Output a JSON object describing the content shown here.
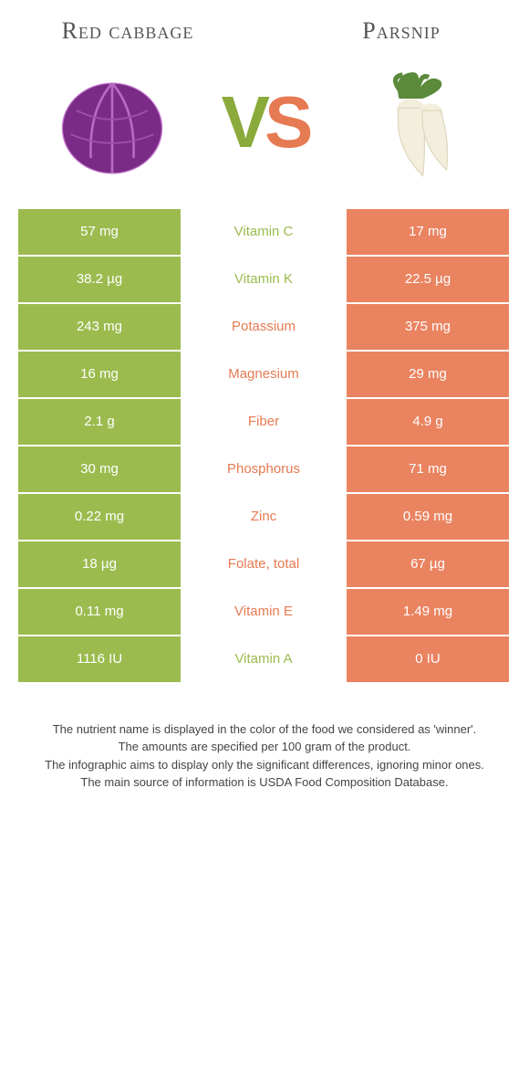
{
  "titles": {
    "left": "Red cabbage",
    "right": "Parsnip"
  },
  "vs": {
    "v": "V",
    "s": "S"
  },
  "colors": {
    "left_bg": "#9bbb4e",
    "right_bg": "#ea8360",
    "left_text": "#9bbb4e",
    "right_text": "#e67a52"
  },
  "rows": [
    {
      "left": "57 mg",
      "label": "Vitamin C",
      "right": "17 mg",
      "winner": "left"
    },
    {
      "left": "38.2 µg",
      "label": "Vitamin K",
      "right": "22.5 µg",
      "winner": "left"
    },
    {
      "left": "243 mg",
      "label": "Potassium",
      "right": "375 mg",
      "winner": "right"
    },
    {
      "left": "16 mg",
      "label": "Magnesium",
      "right": "29 mg",
      "winner": "right"
    },
    {
      "left": "2.1 g",
      "label": "Fiber",
      "right": "4.9 g",
      "winner": "right"
    },
    {
      "left": "30 mg",
      "label": "Phosphorus",
      "right": "71 mg",
      "winner": "right"
    },
    {
      "left": "0.22 mg",
      "label": "Zinc",
      "right": "0.59 mg",
      "winner": "right"
    },
    {
      "left": "18 µg",
      "label": "Folate, total",
      "right": "67 µg",
      "winner": "right"
    },
    {
      "left": "0.11 mg",
      "label": "Vitamin E",
      "right": "1.49 mg",
      "winner": "right"
    },
    {
      "left": "1116 IU",
      "label": "Vitamin A",
      "right": "0 IU",
      "winner": "left"
    }
  ],
  "footer": [
    "The nutrient name is displayed in the color of the food we considered as 'winner'.",
    "The amounts are specified per 100 gram of the product.",
    "The infographic aims to display only the significant differences, ignoring minor ones.",
    "The main source of information is USDA Food Composition Database."
  ]
}
